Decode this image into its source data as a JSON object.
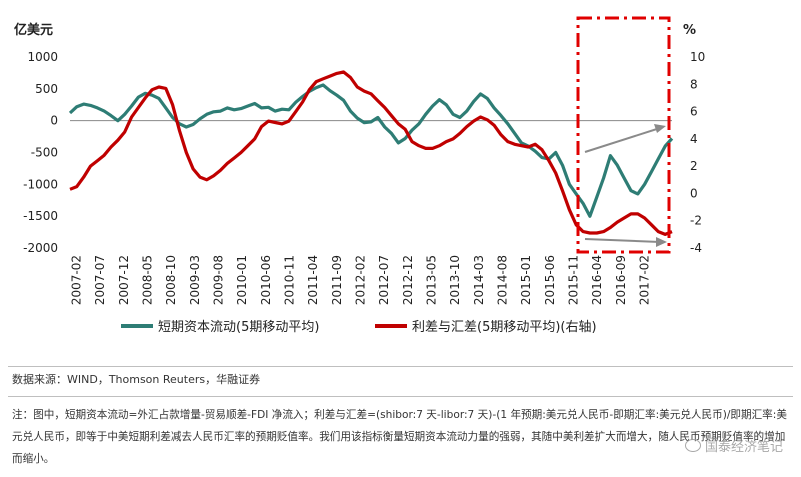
{
  "chart_data": {
    "type": "line",
    "left_unit": "亿美元",
    "right_unit": "%",
    "x_ticks": [
      "2007-02",
      "2007-07",
      "2007-12",
      "2008-05",
      "2008-10",
      "2009-03",
      "2009-08",
      "2010-01",
      "2010-06",
      "2010-11",
      "2011-04",
      "2011-09",
      "2012-02",
      "2012-07",
      "2012-12",
      "2013-05",
      "2013-10",
      "2014-03",
      "2014-08",
      "2015-01",
      "2015-06",
      "2015-11",
      "2016-04",
      "2016-09",
      "2017-02"
    ],
    "y_left_ticks": [
      "1000",
      "500",
      "0",
      "-500",
      "-1000",
      "-1500",
      "-2000"
    ],
    "y_right_ticks": [
      "10",
      "8",
      "6",
      "4",
      "2",
      "0",
      "-2",
      "-4"
    ],
    "ylim_left": [
      -2000,
      1000
    ],
    "ylim_right": [
      -4,
      10
    ],
    "legend_position": "bottom",
    "series": [
      {
        "name": "短期资本流动(5期移动平均)",
        "axis": "left",
        "color": "#2e7d75",
        "points": [
          [
            0,
            120
          ],
          [
            1,
            220
          ],
          [
            2,
            260
          ],
          [
            3,
            240
          ],
          [
            4,
            200
          ],
          [
            5,
            150
          ],
          [
            6,
            80
          ],
          [
            7,
            0
          ],
          [
            8,
            100
          ],
          [
            9,
            230
          ],
          [
            10,
            370
          ],
          [
            11,
            430
          ],
          [
            12,
            400
          ],
          [
            13,
            350
          ],
          [
            14,
            200
          ],
          [
            15,
            50
          ],
          [
            16,
            -50
          ],
          [
            17,
            -100
          ],
          [
            18,
            -60
          ],
          [
            19,
            30
          ],
          [
            20,
            100
          ],
          [
            21,
            140
          ],
          [
            22,
            150
          ],
          [
            23,
            200
          ],
          [
            24,
            170
          ],
          [
            25,
            190
          ],
          [
            26,
            230
          ],
          [
            27,
            270
          ],
          [
            28,
            200
          ],
          [
            29,
            210
          ],
          [
            30,
            150
          ],
          [
            31,
            180
          ],
          [
            32,
            170
          ],
          [
            33,
            290
          ],
          [
            34,
            380
          ],
          [
            35,
            460
          ],
          [
            36,
            520
          ],
          [
            37,
            560
          ],
          [
            38,
            470
          ],
          [
            39,
            400
          ],
          [
            40,
            320
          ],
          [
            41,
            150
          ],
          [
            42,
            40
          ],
          [
            43,
            -30
          ],
          [
            44,
            -20
          ],
          [
            45,
            50
          ],
          [
            46,
            -100
          ],
          [
            47,
            -200
          ],
          [
            48,
            -350
          ],
          [
            49,
            -280
          ],
          [
            50,
            -150
          ],
          [
            51,
            -50
          ],
          [
            52,
            100
          ],
          [
            53,
            230
          ],
          [
            54,
            330
          ],
          [
            55,
            250
          ],
          [
            56,
            100
          ],
          [
            57,
            50
          ],
          [
            58,
            150
          ],
          [
            59,
            300
          ],
          [
            60,
            420
          ],
          [
            61,
            350
          ],
          [
            62,
            200
          ],
          [
            63,
            80
          ],
          [
            64,
            -50
          ],
          [
            65,
            -200
          ],
          [
            66,
            -350
          ],
          [
            67,
            -400
          ],
          [
            68,
            -480
          ],
          [
            69,
            -580
          ],
          [
            70,
            -600
          ],
          [
            71,
            -500
          ],
          [
            72,
            -700
          ],
          [
            73,
            -1000
          ],
          [
            74,
            -1150
          ],
          [
            75,
            -1300
          ],
          [
            76,
            -1500
          ],
          [
            77,
            -1200
          ],
          [
            78,
            -900
          ],
          [
            79,
            -550
          ],
          [
            80,
            -700
          ],
          [
            81,
            -900
          ],
          [
            82,
            -1100
          ],
          [
            83,
            -1150
          ],
          [
            84,
            -1000
          ],
          [
            85,
            -800
          ],
          [
            86,
            -600
          ],
          [
            87,
            -400
          ],
          [
            88,
            -280
          ]
        ]
      },
      {
        "name": "利差与汇差(5期移动平均)(右轴)",
        "axis": "right",
        "color": "#c00000",
        "points": [
          [
            0,
            0.3
          ],
          [
            1,
            0.5
          ],
          [
            2,
            1.2
          ],
          [
            3,
            2.0
          ],
          [
            4,
            2.4
          ],
          [
            5,
            2.8
          ],
          [
            6,
            3.4
          ],
          [
            7,
            3.9
          ],
          [
            8,
            4.5
          ],
          [
            9,
            5.6
          ],
          [
            10,
            6.3
          ],
          [
            11,
            7.0
          ],
          [
            12,
            7.6
          ],
          [
            13,
            7.8
          ],
          [
            14,
            7.7
          ],
          [
            15,
            6.5
          ],
          [
            16,
            4.6
          ],
          [
            17,
            3.0
          ],
          [
            18,
            1.8
          ],
          [
            19,
            1.2
          ],
          [
            20,
            1.0
          ],
          [
            21,
            1.3
          ],
          [
            22,
            1.7
          ],
          [
            23,
            2.2
          ],
          [
            24,
            2.6
          ],
          [
            25,
            3.0
          ],
          [
            26,
            3.5
          ],
          [
            27,
            4.0
          ],
          [
            28,
            4.9
          ],
          [
            29,
            5.3
          ],
          [
            30,
            5.2
          ],
          [
            31,
            5.1
          ],
          [
            32,
            5.3
          ],
          [
            33,
            6.0
          ],
          [
            34,
            6.7
          ],
          [
            35,
            7.6
          ],
          [
            36,
            8.2
          ],
          [
            37,
            8.4
          ],
          [
            38,
            8.6
          ],
          [
            39,
            8.8
          ],
          [
            40,
            8.9
          ],
          [
            41,
            8.5
          ],
          [
            42,
            7.8
          ],
          [
            43,
            7.5
          ],
          [
            44,
            7.3
          ],
          [
            45,
            6.8
          ],
          [
            46,
            6.3
          ],
          [
            47,
            5.7
          ],
          [
            48,
            5.1
          ],
          [
            49,
            4.7
          ],
          [
            50,
            3.8
          ],
          [
            51,
            3.5
          ],
          [
            52,
            3.3
          ],
          [
            53,
            3.3
          ],
          [
            54,
            3.5
          ],
          [
            55,
            3.8
          ],
          [
            56,
            4.0
          ],
          [
            57,
            4.4
          ],
          [
            58,
            4.9
          ],
          [
            59,
            5.3
          ],
          [
            60,
            5.6
          ],
          [
            61,
            5.4
          ],
          [
            62,
            5.0
          ],
          [
            63,
            4.3
          ],
          [
            64,
            3.8
          ],
          [
            65,
            3.6
          ],
          [
            66,
            3.5
          ],
          [
            67,
            3.4
          ],
          [
            68,
            3.6
          ],
          [
            69,
            3.2
          ],
          [
            70,
            2.4
          ],
          [
            71,
            1.5
          ],
          [
            72,
            0.2
          ],
          [
            73,
            -1.2
          ],
          [
            74,
            -2.3
          ],
          [
            75,
            -2.8
          ],
          [
            76,
            -2.9
          ],
          [
            77,
            -2.9
          ],
          [
            78,
            -2.8
          ],
          [
            79,
            -2.5
          ],
          [
            80,
            -2.1
          ],
          [
            81,
            -1.8
          ],
          [
            82,
            -1.5
          ],
          [
            83,
            -1.5
          ],
          [
            84,
            -1.8
          ],
          [
            85,
            -2.3
          ],
          [
            86,
            -2.8
          ],
          [
            87,
            -3.0
          ],
          [
            88,
            -2.8
          ]
        ]
      }
    ]
  },
  "source_text": "数据来源：WIND，Thomson Reuters，华融证券",
  "note_text": "注：图中，短期资本流动=外汇占款增量-贸易顺差-FDI 净流入；利差与汇差=(shibor:7 天-libor:7 天)-(1 年预期:美元兑人民币-即期汇率:美元兑人民币)/即期汇率:美元兑人民币，即等于中美短期利差减去人民币汇率的预期贬值率。我们用该指标衡量短期资本流动力量的强弱，其随中美利差扩大而增大，随人民币预期贬值率的增加而缩小。",
  "watermark_text": "国泰经济笔记"
}
